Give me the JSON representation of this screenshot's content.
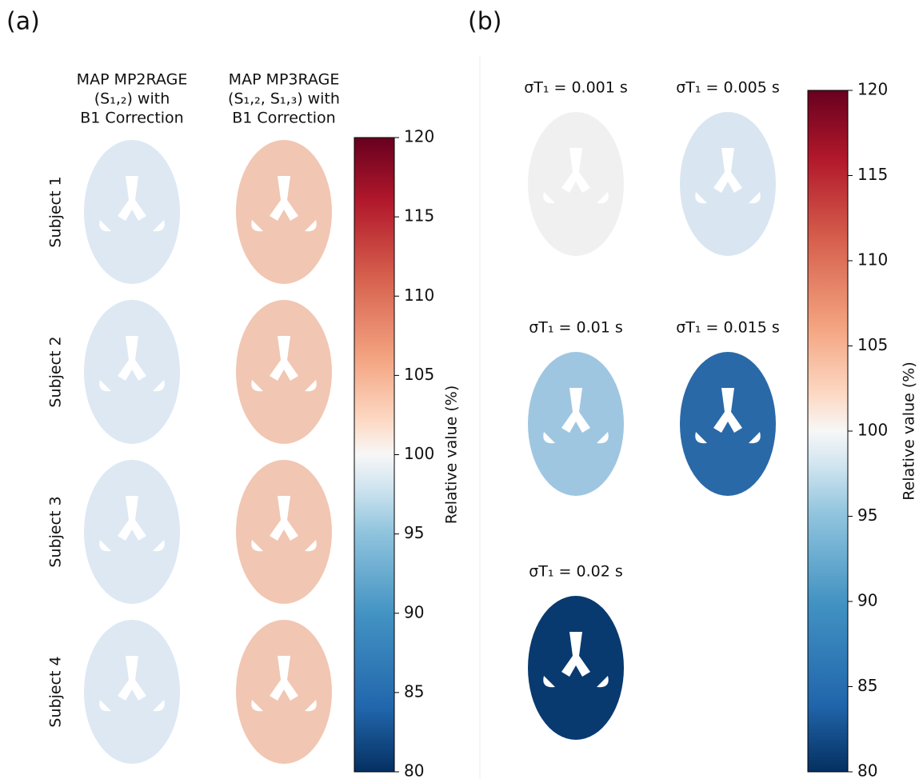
{
  "panel_a": {
    "label": "(a)",
    "columns": [
      [
        "MAP MP2RAGE",
        "(S₁,₂) with",
        "B1 Correction"
      ],
      [
        "MAP MP3RAGE",
        "(S₁,₂, S₁,₃) with",
        "B1 Correction"
      ]
    ],
    "rows": [
      "Subject 1",
      "Subject 2",
      "Subject 3",
      "Subject 4"
    ],
    "colorbar": {
      "label": "Relative value (%)",
      "lim": [
        80,
        120
      ],
      "ticks": [
        80,
        85,
        90,
        95,
        100,
        105,
        110,
        115,
        120
      ]
    }
  },
  "panel_b": {
    "label": "(b)",
    "titles": [
      "σT₁ = 0.001 s",
      "σT₁ = 0.005 s",
      "σT₁ = 0.01 s",
      "σT₁ = 0.015 s",
      "σT₁ = 0.02 s"
    ],
    "colorbar": {
      "label": "Relative value (%)",
      "lim": [
        80,
        120
      ],
      "ticks": [
        80,
        85,
        90,
        95,
        100,
        105,
        110,
        115,
        120
      ]
    }
  }
}
